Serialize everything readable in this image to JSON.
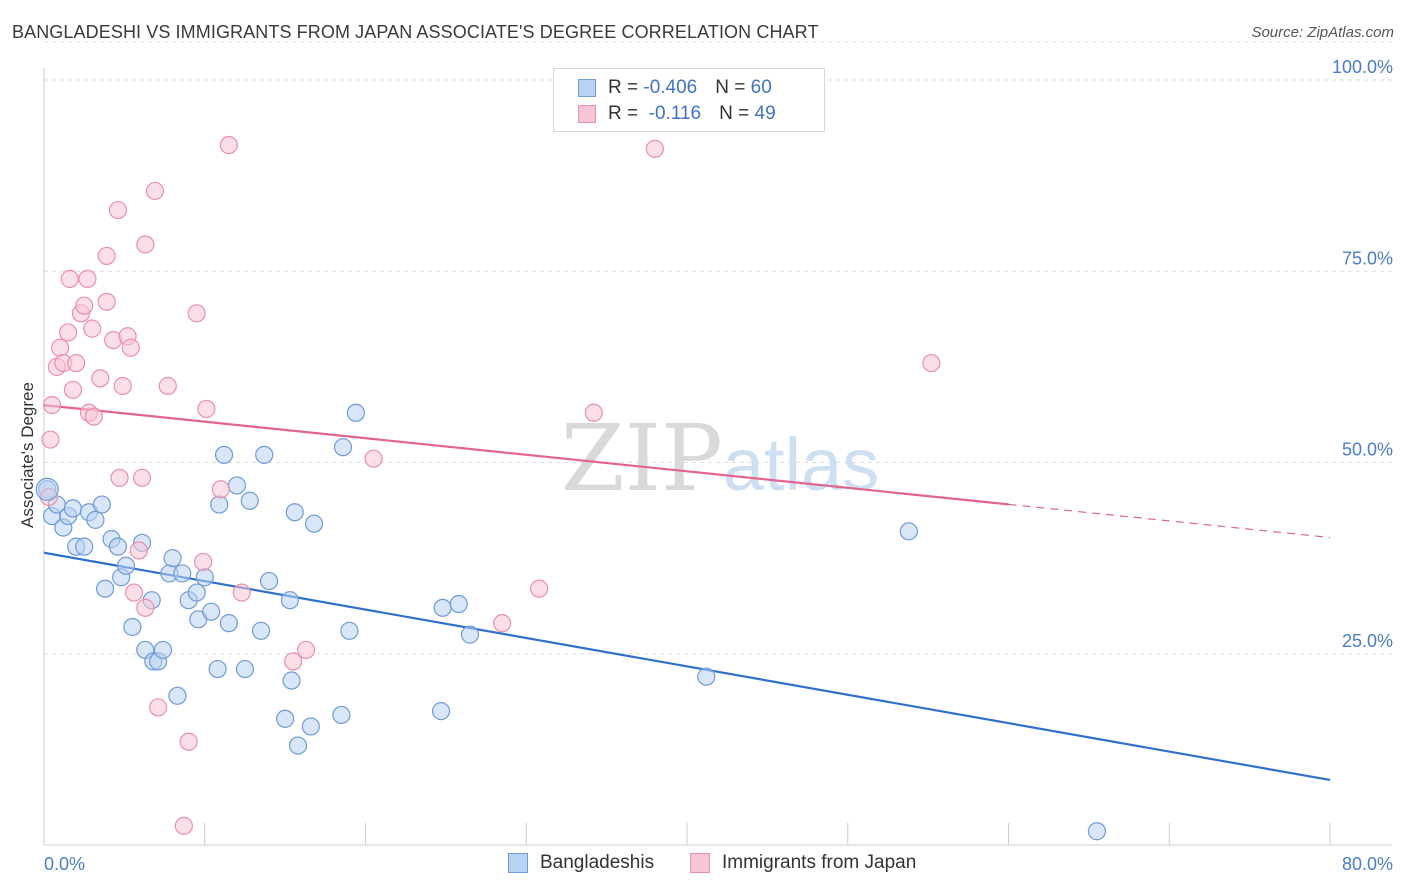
{
  "title": "BANGLADESHI VS IMMIGRANTS FROM JAPAN ASSOCIATE'S DEGREE CORRELATION CHART",
  "source": "Source: ZipAtlas.com",
  "legend_top": {
    "rows": [
      {
        "r_label": "R = ",
        "r_value": "-0.406",
        "n_label": "N = ",
        "n_value": "60"
      },
      {
        "r_label": "R = ",
        "r_value": " -0.116",
        "n_label": "N = ",
        "n_value": "49"
      }
    ]
  },
  "legend_bottom": [
    "Bangladeshis",
    "Immigrants from Japan"
  ],
  "colors": {
    "blue_fill": "#b8d2f0",
    "blue_stroke": "#6f9bd8",
    "blue_line": "#2f6fce",
    "pink_fill": "#f7c5d4",
    "pink_stroke": "#ea8fae",
    "pink_line": "#e2648f",
    "grid": "#dddddd",
    "tick_text": "#4a7cc9"
  },
  "chart_data": {
    "type": "scatter",
    "title": "BANGLADESHI VS IMMIGRANTS FROM JAPAN ASSOCIATE'S DEGREE CORRELATION CHART",
    "xlabel": "",
    "ylabel": "Associate's Degree",
    "xlim": [
      0,
      80
    ],
    "ylim": [
      0,
      105
    ],
    "x_tick_labels": [
      "0.0%",
      "80.0%"
    ],
    "y_ticks": [
      25,
      50,
      75,
      100
    ],
    "y_tick_labels": [
      "25.0%",
      "50.0%",
      "75.0%",
      "100.0%"
    ],
    "grid": true,
    "watermark": "ZIPatlas",
    "series": [
      {
        "name": "Bangladeshis",
        "color": "blue",
        "trend": {
          "x0": 0,
          "y0": 38.2,
          "x1": 80,
          "y1": 8.5,
          "dashed_from": null
        },
        "points": [
          [
            0.2,
            46.5
          ],
          [
            0.5,
            43
          ],
          [
            0.8,
            44.5
          ],
          [
            1.2,
            41.5
          ],
          [
            1.5,
            43
          ],
          [
            1.8,
            44
          ],
          [
            2,
            39
          ],
          [
            2.5,
            39
          ],
          [
            2.8,
            43.5
          ],
          [
            3.2,
            42.5
          ],
          [
            3.6,
            44.5
          ],
          [
            3.8,
            33.5
          ],
          [
            4.2,
            40
          ],
          [
            4.6,
            39
          ],
          [
            4.8,
            35
          ],
          [
            5.1,
            36.5
          ],
          [
            5.5,
            28.5
          ],
          [
            6.1,
            39.5
          ],
          [
            6.3,
            25.5
          ],
          [
            6.7,
            32
          ],
          [
            6.8,
            24
          ],
          [
            7.1,
            24
          ],
          [
            7.4,
            25.5
          ],
          [
            7.8,
            35.5
          ],
          [
            8,
            37.5
          ],
          [
            8.3,
            19.5
          ],
          [
            8.6,
            35.5
          ],
          [
            9,
            32
          ],
          [
            9.5,
            33
          ],
          [
            9.6,
            29.5
          ],
          [
            10,
            35
          ],
          [
            10.4,
            30.5
          ],
          [
            10.8,
            23
          ],
          [
            10.9,
            44.5
          ],
          [
            11.2,
            51
          ],
          [
            11.5,
            29
          ],
          [
            12,
            47
          ],
          [
            12.5,
            23
          ],
          [
            12.8,
            45
          ],
          [
            13.5,
            28
          ],
          [
            13.7,
            51
          ],
          [
            14,
            34.5
          ],
          [
            15,
            16.5
          ],
          [
            15.3,
            32
          ],
          [
            15.4,
            21.5
          ],
          [
            15.6,
            43.5
          ],
          [
            15.8,
            13
          ],
          [
            16.6,
            15.5
          ],
          [
            16.8,
            42
          ],
          [
            18.5,
            17
          ],
          [
            19,
            28
          ],
          [
            18.6,
            52
          ],
          [
            19.4,
            56.5
          ],
          [
            24.7,
            17.5
          ],
          [
            24.8,
            31
          ],
          [
            25.8,
            31.5
          ],
          [
            26.5,
            27.5
          ],
          [
            41.2,
            22
          ],
          [
            53.8,
            41
          ],
          [
            65.5,
            1.8
          ]
        ]
      },
      {
        "name": "Immigrants from Japan",
        "color": "pink",
        "trend": {
          "x0": 0,
          "y0": 57.5,
          "x1": 80,
          "y1": 40.2,
          "dashed_from": 60
        },
        "points": [
          [
            0.3,
            45.5
          ],
          [
            0.4,
            53
          ],
          [
            0.5,
            57.5
          ],
          [
            0.8,
            62.5
          ],
          [
            1,
            65
          ],
          [
            1.2,
            63
          ],
          [
            1.5,
            67
          ],
          [
            1.6,
            74
          ],
          [
            1.8,
            59.5
          ],
          [
            2,
            63
          ],
          [
            2.3,
            69.5
          ],
          [
            2.5,
            70.5
          ],
          [
            2.7,
            74
          ],
          [
            2.8,
            56.5
          ],
          [
            3,
            67.5
          ],
          [
            3.1,
            56
          ],
          [
            3.5,
            61
          ],
          [
            3.9,
            77
          ],
          [
            3.9,
            71
          ],
          [
            4.3,
            66
          ],
          [
            4.6,
            83
          ],
          [
            4.7,
            48
          ],
          [
            4.9,
            60
          ],
          [
            5.2,
            66.5
          ],
          [
            5.4,
            65
          ],
          [
            5.6,
            33
          ],
          [
            5.9,
            38.5
          ],
          [
            6.1,
            48
          ],
          [
            6.3,
            31
          ],
          [
            6.3,
            78.5
          ],
          [
            6.9,
            85.5
          ],
          [
            7.1,
            18
          ],
          [
            7.7,
            60
          ],
          [
            8.7,
            2.5
          ],
          [
            9,
            13.5
          ],
          [
            9.5,
            69.5
          ],
          [
            9.9,
            37
          ],
          [
            10.1,
            57
          ],
          [
            11,
            46.5
          ],
          [
            11.5,
            91.5
          ],
          [
            12.3,
            33
          ],
          [
            15.5,
            24
          ],
          [
            16.3,
            25.5
          ],
          [
            20.5,
            50.5
          ],
          [
            28.5,
            29
          ],
          [
            30.8,
            33.5
          ],
          [
            34.2,
            56.5
          ],
          [
            38,
            91
          ],
          [
            55.2,
            63
          ]
        ]
      }
    ]
  }
}
